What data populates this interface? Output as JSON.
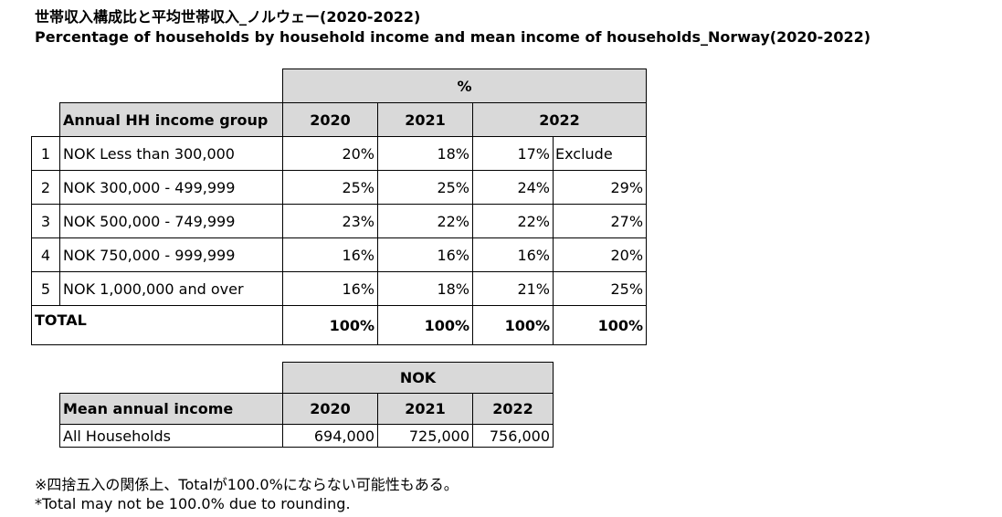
{
  "title_ja": "世帯収入構成比と平均世帯収入_ノルウェー(2020-2022)",
  "title_en": "Percentage of households by household income and mean income of households_Norway(2020-2022)",
  "table1": {
    "unit": "%",
    "group_header": "Annual HH income group",
    "years": [
      "2020",
      "2021",
      "2022"
    ],
    "rows": [
      {
        "no": "1",
        "label": "NOK Less than 300,000",
        "v2020": "20%",
        "v2021": "18%",
        "v2022": "17%",
        "v2022b": "Exclude"
      },
      {
        "no": "2",
        "label": "NOK 300,000 - 499,999",
        "v2020": "25%",
        "v2021": "25%",
        "v2022": "24%",
        "v2022b": "29%"
      },
      {
        "no": "3",
        "label": "NOK 500,000 - 749,999",
        "v2020": "23%",
        "v2021": "22%",
        "v2022": "22%",
        "v2022b": "27%"
      },
      {
        "no": "4",
        "label": "NOK 750,000 - 999,999",
        "v2020": "16%",
        "v2021": "16%",
        "v2022": "16%",
        "v2022b": "20%"
      },
      {
        "no": "5",
        "label": "NOK 1,000,000 and over",
        "v2020": "16%",
        "v2021": "18%",
        "v2022": "21%",
        "v2022b": "25%"
      }
    ],
    "total": {
      "label": "TOTAL",
      "v2020": "100%",
      "v2021": "100%",
      "v2022": "100%",
      "v2022b": "100%"
    }
  },
  "table2": {
    "unit": "NOK",
    "header": "Mean annual income",
    "years": [
      "2020",
      "2021",
      "2022"
    ],
    "row": {
      "label": "All Households",
      "v2020": "694,000",
      "v2021": "725,000",
      "v2022": "756,000"
    }
  },
  "notes": {
    "ja": "※四捨五入の関係上、Totalが100.0%にならない可能性もある。",
    "en": "*Total may not be 100.0% due to rounding."
  }
}
